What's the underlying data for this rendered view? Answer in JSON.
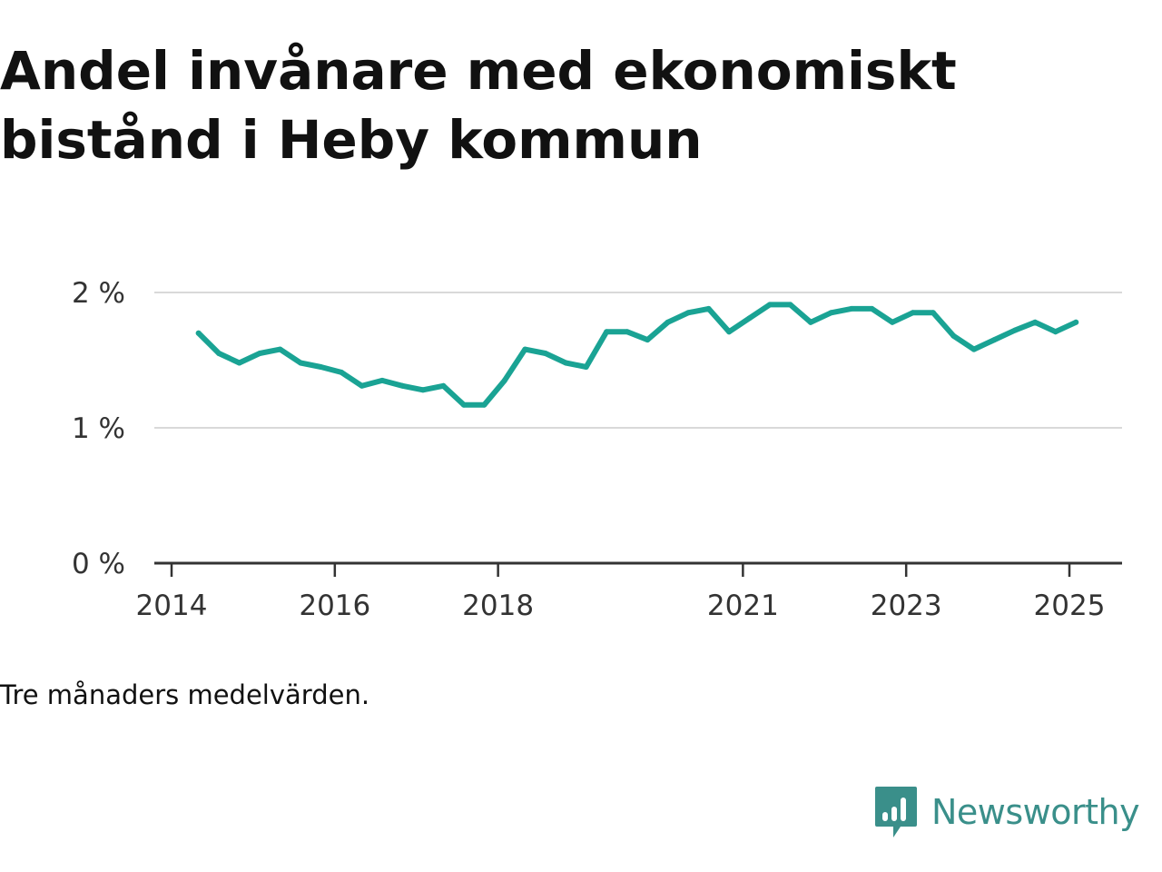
{
  "title": "Andel invånare med ekonomiskt bistånd i Heby kommun",
  "note": "Tre månaders medelvärden.",
  "brand": {
    "name": "Newsworthy",
    "logo_icon": "bar-chart-speech-bubble-icon",
    "color": "#3a8f8a"
  },
  "chart_data": {
    "type": "line",
    "title": "Andel invånare med ekonomiskt bistånd i Heby kommun",
    "xlabel": "",
    "ylabel": "",
    "ylim": [
      0,
      2
    ],
    "yticks": [
      0,
      1,
      2
    ],
    "ytick_labels": [
      "0 %",
      "1 %",
      "2 %"
    ],
    "xticks": [
      2014,
      2016,
      2018,
      2021,
      2023,
      2025
    ],
    "xtick_labels": [
      "2014",
      "2016",
      "2018",
      "2021",
      "2023",
      "2025"
    ],
    "xlim": [
      2014.0,
      2025.7
    ],
    "grid": "horizontal",
    "line_color": "#1aa394",
    "series": [
      {
        "x": [
          2014.33,
          2014.58,
          2014.83,
          2015.08,
          2015.33,
          2015.58,
          2015.83,
          2016.08,
          2016.33,
          2016.58,
          2016.83,
          2017.08,
          2017.33,
          2017.58,
          2017.83,
          2018.08,
          2018.33,
          2018.58,
          2018.83,
          2019.08,
          2019.33,
          2019.58,
          2019.83,
          2020.08,
          2020.33,
          2020.58,
          2020.83,
          2021.08,
          2021.33,
          2021.58,
          2021.83,
          2022.08,
          2022.33,
          2022.58,
          2022.83,
          2023.08,
          2023.33,
          2023.58,
          2023.83,
          2024.08,
          2024.33,
          2024.58,
          2024.83,
          2025.08
        ],
        "values": [
          1.7,
          1.55,
          1.48,
          1.55,
          1.58,
          1.48,
          1.45,
          1.41,
          1.31,
          1.35,
          1.31,
          1.28,
          1.31,
          1.17,
          1.17,
          1.35,
          1.58,
          1.55,
          1.48,
          1.45,
          1.71,
          1.71,
          1.65,
          1.78,
          1.85,
          1.88,
          1.71,
          1.81,
          1.91,
          1.91,
          1.78,
          1.85,
          1.88,
          1.88,
          1.78,
          1.85,
          1.85,
          1.68,
          1.58,
          1.65,
          1.72,
          1.78,
          1.71,
          1.78
        ]
      }
    ]
  }
}
